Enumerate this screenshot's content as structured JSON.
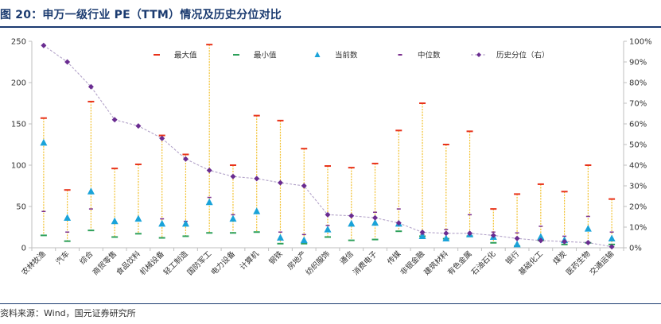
{
  "header": {
    "title": "图 20：申万一级行业 PE（TTM）情况及历史分位对比"
  },
  "footer": {
    "source": "资料来源：Wind，国元证券研究所"
  },
  "colors": {
    "max": "#e8321a",
    "min": "#2ca05a",
    "current": "#1aa3d9",
    "median": "#7b2f8e",
    "percentile": "#6a2c91",
    "range_line": "#f2c12e",
    "axis": "#bfbfbf"
  },
  "chart_data": {
    "type": "line",
    "title": "",
    "xlabel": "",
    "ylabel": "",
    "ylim": [
      0,
      250
    ],
    "y2lim": [
      0,
      1
    ],
    "yticks": [
      "0",
      "50",
      "100",
      "150",
      "200",
      "250"
    ],
    "y2ticks": [
      "0%",
      "10%",
      "20%",
      "30%",
      "40%",
      "50%",
      "60%",
      "70%",
      "80%",
      "90%",
      "100%"
    ],
    "legend_position": "top",
    "categories": [
      "农林牧渔",
      "汽车",
      "综合",
      "商贸零售",
      "食品饮料",
      "机械设备",
      "轻工制造",
      "国防军工",
      "电力设备",
      "计算机",
      "钢铁",
      "房地产",
      "纺织服饰",
      "通信",
      "消费电子",
      "传媒",
      "非银金融",
      "建筑材料",
      "有色金属",
      "石油石化",
      "银行",
      "基础化工",
      "煤炭",
      "医药生物",
      "交通运输"
    ],
    "series": [
      {
        "name": "最大值",
        "marker": "dash",
        "axis": "left",
        "values": [
          157,
          70,
          177,
          96,
          101,
          136,
          113,
          246,
          100,
          160,
          154,
          120,
          99,
          97,
          102,
          142,
          175,
          125,
          141,
          47,
          65,
          77,
          68,
          100,
          59
        ]
      },
      {
        "name": "最小值",
        "marker": "dash",
        "axis": "left",
        "values": [
          15,
          8,
          21,
          13,
          17,
          12,
          14,
          18,
          18,
          19,
          5,
          5,
          13,
          9,
          10,
          20,
          14,
          11,
          14,
          6,
          2,
          9,
          4,
          6,
          4
        ]
      },
      {
        "name": "当前数",
        "marker": "triangle",
        "axis": "left",
        "values": [
          127,
          36,
          68,
          32,
          35,
          29,
          29,
          55,
          35,
          44,
          12,
          9,
          22,
          29,
          30,
          29,
          14,
          11,
          16,
          13,
          4,
          13,
          9,
          23,
          11
        ]
      },
      {
        "name": "中位数",
        "marker": "dash",
        "axis": "left",
        "values": [
          44,
          19,
          47,
          30,
          33,
          35,
          32,
          61,
          40,
          43,
          19,
          16,
          27,
          27,
          43,
          47,
          16,
          22,
          40,
          19,
          18,
          26,
          14,
          38,
          19
        ]
      },
      {
        "name": "历史分位（右）",
        "marker": "diamond",
        "axis": "right",
        "values": [
          0.98,
          0.9,
          0.78,
          0.62,
          0.59,
          0.53,
          0.43,
          0.375,
          0.345,
          0.335,
          0.315,
          0.3,
          0.16,
          0.155,
          0.145,
          0.12,
          0.075,
          0.07,
          0.07,
          0.06,
          0.045,
          0.035,
          0.03,
          0.025,
          0.005
        ]
      }
    ]
  }
}
